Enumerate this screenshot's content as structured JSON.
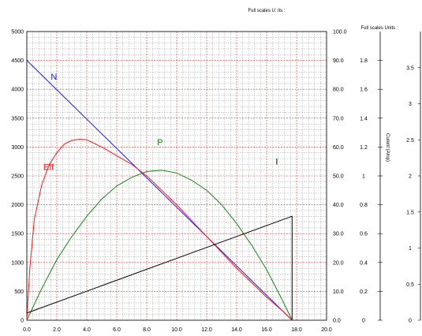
{
  "chart_data": {
    "type": "line",
    "x_range": [
      0,
      20
    ],
    "x_ticks": [
      "0.0",
      "2.0",
      "4.0",
      "6.0",
      "8.0",
      "10.0",
      "12.0",
      "14.0",
      "16.0",
      "18.0",
      "20.0"
    ],
    "y_axes": {
      "left": {
        "range": [
          0,
          5000
        ],
        "ticks": [
          "0",
          "500",
          "1000",
          "1500",
          "2000",
          "2500",
          "3000",
          "3500",
          "4000",
          "4500",
          "5000"
        ]
      },
      "right1": {
        "range": [
          0,
          100
        ],
        "ticks": [
          "0.0",
          "10.0",
          "20.0",
          "30.0",
          "40.0",
          "50.0",
          "60.0",
          "70.0",
          "80.0",
          "90.0",
          "100.0"
        ],
        "header": "Full scales U: its :"
      },
      "right2": {
        "range": [
          0,
          2
        ],
        "ticks": [
          "0",
          "0.2",
          "0.4",
          "0.6",
          "0.8",
          "1",
          "1.2",
          "1.4",
          "1.6",
          "1.8"
        ],
        "header": "Full scales Units :",
        "label": "Curent (Amp)"
      },
      "right3": {
        "range": [
          0,
          4
        ],
        "ticks": [
          "0",
          "0.5",
          "1",
          "1.5",
          "2",
          "2.5",
          "3",
          "3.5"
        ]
      }
    },
    "grid": true,
    "series": [
      {
        "name": "N",
        "axis": "left",
        "color": "#1a1aff",
        "x": [
          0,
          17.7
        ],
        "y": [
          4500,
          0
        ]
      },
      {
        "name": "Eff",
        "axis": "right1",
        "color": "#ff1a1a",
        "x": [
          0,
          0.2,
          0.5,
          1.0,
          1.5,
          2.0,
          2.5,
          3.0,
          3.5,
          4.0,
          5.0,
          6.0,
          7.0,
          8.0,
          9.0,
          10.0,
          11.0,
          12.0,
          13.0,
          14.0,
          15.0,
          16.0,
          17.0,
          17.7
        ],
        "y": [
          0,
          18,
          35,
          47,
          54,
          58,
          61,
          62.3,
          62.7,
          62.5,
          60,
          57,
          54,
          50,
          45,
          40,
          34.5,
          29,
          23.5,
          18,
          13,
          8,
          3.5,
          0
        ]
      },
      {
        "name": "P",
        "axis": "right1",
        "color": "#118811",
        "x": [
          0,
          1,
          2,
          3,
          4,
          5,
          6,
          7,
          8,
          9,
          10,
          11,
          12,
          13,
          14,
          15,
          16,
          17,
          17.7
        ],
        "y": [
          0,
          11,
          21,
          29,
          36,
          42,
          46.5,
          49.5,
          51.5,
          52,
          51,
          48.5,
          45,
          40,
          33.5,
          26,
          17.5,
          7.5,
          0
        ]
      },
      {
        "name": "I",
        "axis": "right2",
        "color": "#000000",
        "x": [
          0,
          17.7,
          17.7
        ],
        "y": [
          0.05,
          0.72,
          0
        ]
      }
    ],
    "curve_labels": [
      {
        "text": "N",
        "color": "#1a1aff",
        "x": 1.6,
        "y_left": 4170
      },
      {
        "text": "Eff",
        "color": "#ff1a1a",
        "x": 1.1,
        "y_left": 2600
      },
      {
        "text": "P",
        "color": "#118811",
        "x": 8.7,
        "y_left": 3030
      },
      {
        "text": "I",
        "color": "#000000",
        "x": 16.6,
        "y_left": 2700
      }
    ]
  }
}
